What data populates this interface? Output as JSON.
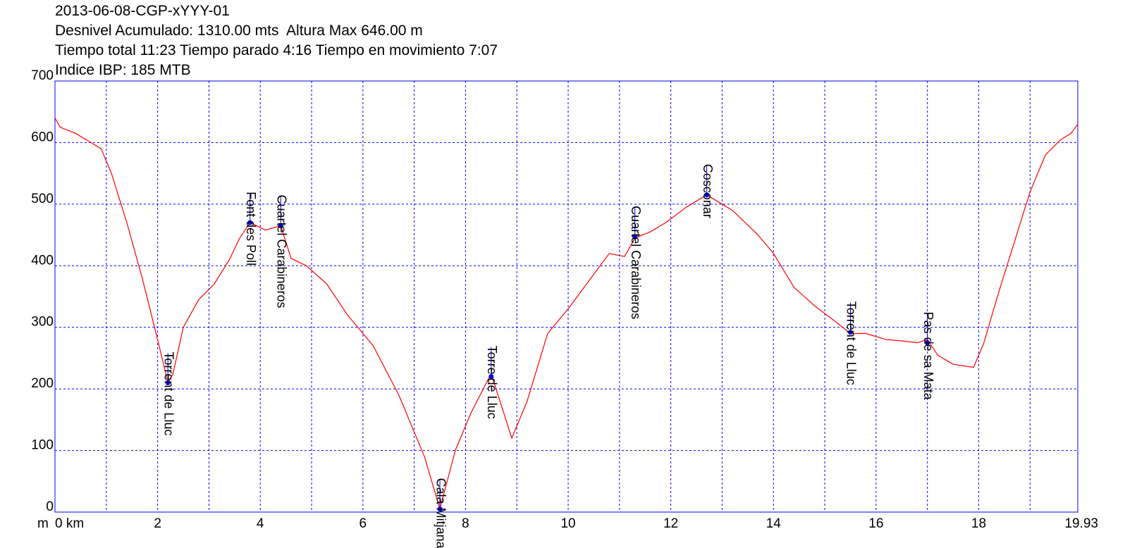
{
  "header": {
    "title": "2013-06-08-CGP-xYYY-01",
    "line2": "Desnivel Acumulado: 1310.00 mts  Altura Max 646.00 m",
    "line3": "Tiempo total 11:23 Tiempo parado 4:16 Tiempo en movimiento 7:07",
    "line4": "Indice IBP: 185 MTB"
  },
  "chart_data": {
    "type": "line",
    "xlabel": "m 0 km",
    "xlim": [
      0,
      19.93
    ],
    "ylim": [
      0,
      700
    ],
    "x_ticks": [
      0,
      2,
      4,
      6,
      8,
      10,
      12,
      14,
      16,
      18,
      19.93
    ],
    "x_tick_labels": [
      "0 km",
      "2",
      "4",
      "6",
      "8",
      "10",
      "12",
      "14",
      "16",
      "18",
      "19.93"
    ],
    "y_label_prefix": "m",
    "y_ticks": [
      0,
      100,
      200,
      300,
      400,
      500,
      600,
      700
    ],
    "grid": true,
    "colors": {
      "line": "#ff0000",
      "grid": "#0000ff",
      "marker": "#0000ff",
      "axes": "#0000ff"
    },
    "series": [
      {
        "x": [
          0,
          0.1,
          0.4,
          0.7,
          0.9,
          1.1,
          1.4,
          1.7,
          2.0,
          2.2,
          2.3,
          2.5,
          2.8,
          3.1,
          3.4,
          3.6,
          3.8,
          4.1,
          4.4,
          4.6,
          4.9,
          5.3,
          5.7,
          6.2,
          6.7,
          7.0,
          7.2,
          7.5,
          7.8,
          8.1,
          8.5,
          8.9,
          9.2,
          9.6,
          10.0,
          10.4,
          10.8,
          11.1,
          11.3,
          11.6,
          11.9,
          12.3,
          12.7,
          13.2,
          13.7,
          14.0,
          14.4,
          14.8,
          15.2,
          15.5,
          15.8,
          16.2,
          16.5,
          16.8,
          17.0,
          17.2,
          17.5,
          17.9,
          18.1,
          18.4,
          18.7,
          19.0,
          19.3,
          19.6,
          19.8,
          19.93
        ],
        "y": [
          640,
          625,
          615,
          600,
          590,
          550,
          470,
          380,
          280,
          210,
          225,
          300,
          345,
          370,
          410,
          445,
          470,
          458,
          465,
          412,
          400,
          370,
          320,
          270,
          190,
          130,
          90,
          5,
          100,
          160,
          225,
          120,
          180,
          290,
          330,
          375,
          420,
          415,
          445,
          455,
          470,
          495,
          515,
          490,
          450,
          420,
          365,
          335,
          310,
          290,
          290,
          280,
          278,
          275,
          280,
          255,
          240,
          235,
          275,
          360,
          440,
          520,
          580,
          605,
          615,
          630
        ]
      }
    ],
    "waypoints": [
      {
        "name": "Torrent de Lluc",
        "x": 2.2,
        "y": 210
      },
      {
        "name": "Font des Poll",
        "x": 3.8,
        "y": 470
      },
      {
        "name": "Cuartel Carabineros",
        "x": 4.4,
        "y": 465
      },
      {
        "name": "Cala Mitjana",
        "x": 7.5,
        "y": 5
      },
      {
        "name": "Torre de Lluc",
        "x": 8.5,
        "y": 220
      },
      {
        "name": "Cuartel Carabineros",
        "x": 11.3,
        "y": 447
      },
      {
        "name": "Cosconar",
        "x": 12.7,
        "y": 515
      },
      {
        "name": "Torrent de Lluc",
        "x": 15.5,
        "y": 292
      },
      {
        "name": "Pas de sa Mata",
        "x": 17.0,
        "y": 275
      }
    ]
  }
}
